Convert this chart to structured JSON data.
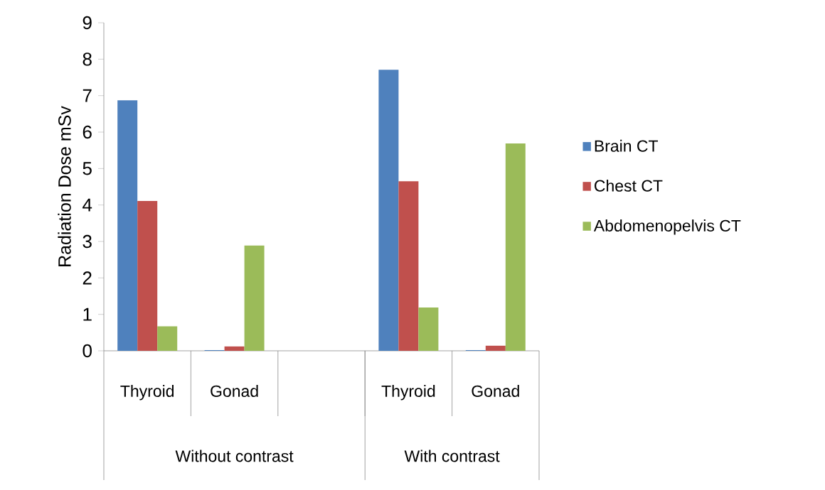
{
  "chart_data": {
    "type": "bar",
    "categories": [
      "Thyroid",
      "Gonad",
      null,
      "Thyroid",
      "Gonad"
    ],
    "series": [
      {
        "name": "Brain CT",
        "color": "#4f81bd",
        "values": [
          6.87,
          0.02,
          null,
          7.71,
          0.02
        ]
      },
      {
        "name": "Chest CT",
        "color": "#c0504d",
        "values": [
          4.11,
          0.12,
          null,
          4.65,
          0.14
        ]
      },
      {
        "name": "Abdomenopelvis CT",
        "color": "#9bbb59",
        "values": [
          0.67,
          2.89,
          null,
          1.19,
          5.69
        ]
      }
    ],
    "ylabel": "Radiation Dose mSv",
    "ylim": [
      0,
      9
    ],
    "yticks": [
      0,
      1,
      2,
      3,
      4,
      5,
      6,
      7,
      8,
      9
    ],
    "annotations": [
      "Without contrast",
      "With contrast"
    ],
    "legend": "right",
    "grid": false
  }
}
